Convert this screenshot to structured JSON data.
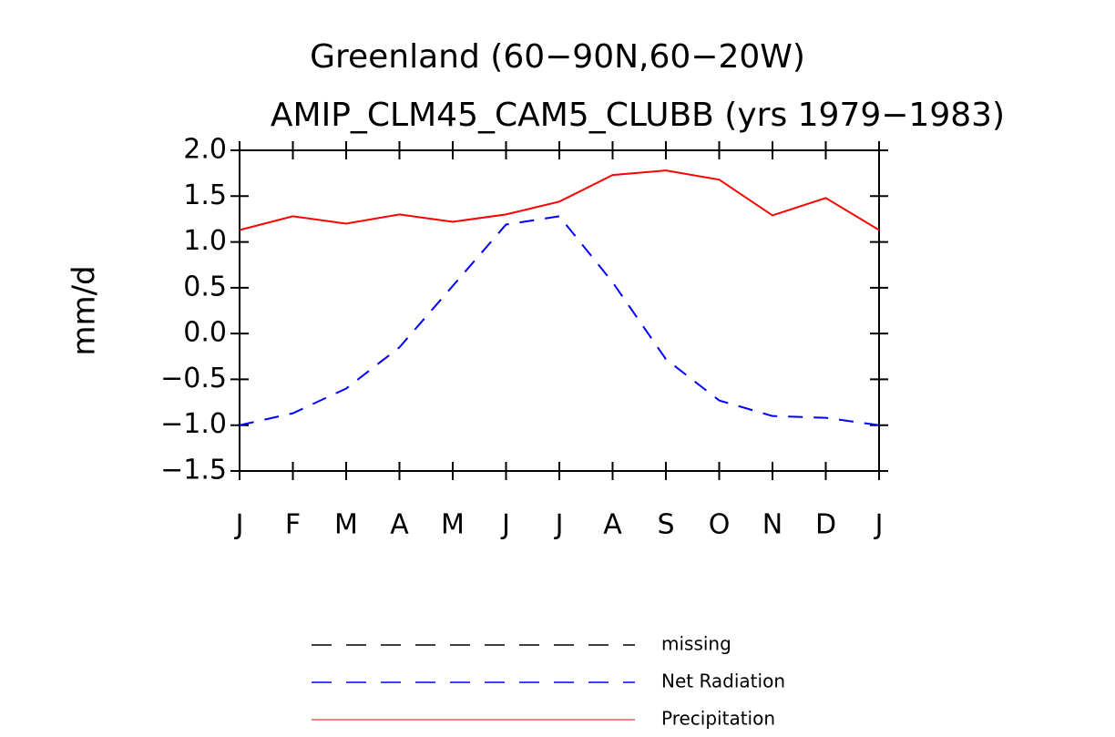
{
  "chart_data": {
    "type": "line",
    "title": "Greenland (60−90N,60−20W)",
    "subtitle": "AMIP_CLM45_CAM5_CLUBB (yrs 1979−1983)",
    "y_label": "mm/d",
    "categories": [
      "J",
      "F",
      "M",
      "A",
      "M",
      "J",
      "J",
      "A",
      "S",
      "O",
      "N",
      "D",
      "J"
    ],
    "ylim": [
      -1.5,
      2.0
    ],
    "yticks": [
      {
        "value": -1.5,
        "label": "−1.5"
      },
      {
        "value": -1.0,
        "label": "−1.0"
      },
      {
        "value": -0.5,
        "label": "−0.5"
      },
      {
        "value": 0,
        "label": "0.0"
      },
      {
        "value": 0.5,
        "label": "0.5"
      },
      {
        "value": 1.0,
        "label": "1.0"
      },
      {
        "value": 1.5,
        "label": "1.5"
      },
      {
        "value": 2.0,
        "label": "2.0"
      }
    ],
    "series": [
      {
        "name": "missing",
        "color": "#000000",
        "dash": true,
        "values": [
          null,
          null,
          null,
          null,
          null,
          null,
          null,
          null,
          null,
          null,
          null,
          null,
          null
        ]
      },
      {
        "name": "Net Radiation",
        "color": "#0000ff",
        "dash": true,
        "values": [
          -1.0,
          -0.87,
          -0.6,
          -0.15,
          0.52,
          1.19,
          1.28,
          0.56,
          -0.28,
          -0.73,
          -0.9,
          -0.92,
          -1.0
        ]
      },
      {
        "name": "Precipitation",
        "color": "#ff0000",
        "dash": false,
        "values": [
          1.13,
          1.28,
          1.2,
          1.3,
          1.22,
          1.3,
          1.44,
          1.73,
          1.78,
          1.68,
          1.29,
          1.48,
          1.13
        ]
      }
    ]
  }
}
